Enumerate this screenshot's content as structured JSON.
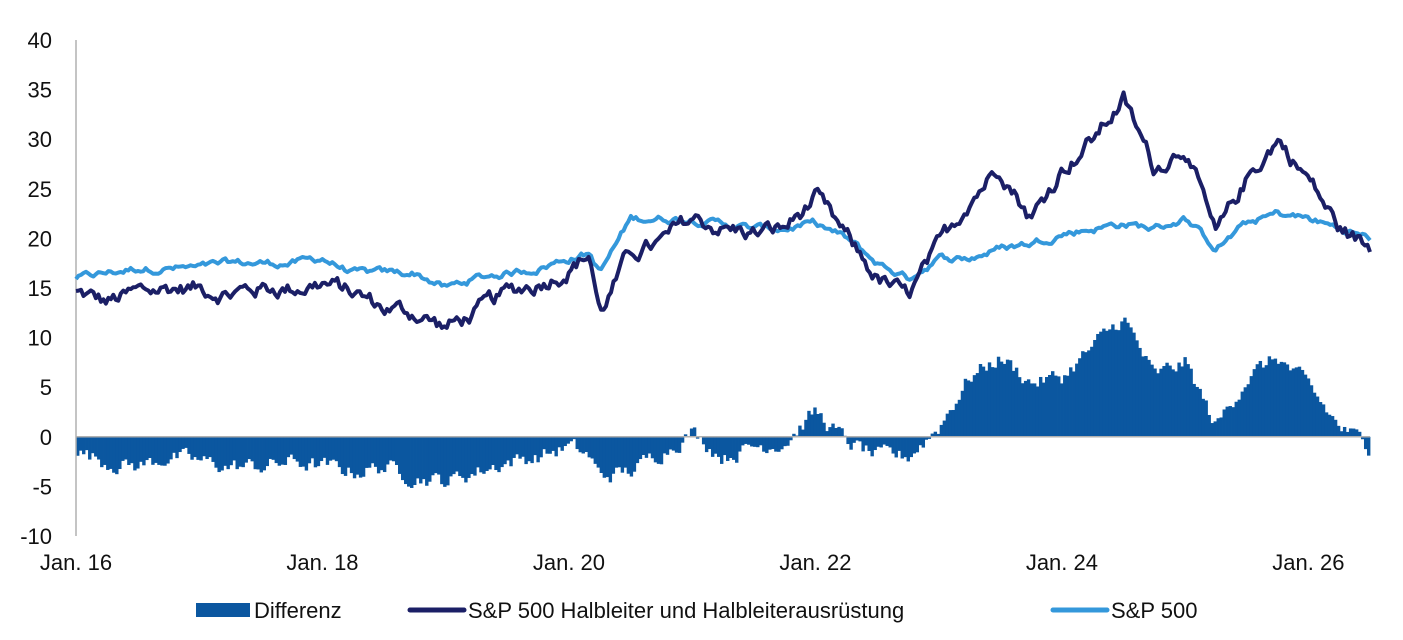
{
  "chart_data": {
    "type": "line",
    "title": "",
    "xlabel": "",
    "ylabel": "",
    "ylim": [
      -10,
      40
    ],
    "yticks": [
      -10,
      -5,
      0,
      5,
      10,
      15,
      20,
      25,
      30,
      35,
      40
    ],
    "xlim": [
      "2016-01",
      "2026-07"
    ],
    "xticks": [
      {
        "label": "Jan. 16",
        "date": "2016-01"
      },
      {
        "label": "Jan. 18",
        "date": "2018-01"
      },
      {
        "label": "Jan. 20",
        "date": "2020-01"
      },
      {
        "label": "Jan. 22",
        "date": "2022-01"
      },
      {
        "label": "Jan. 24",
        "date": "2024-01"
      },
      {
        "label": "Jan. 26",
        "date": "2026-01"
      }
    ],
    "grid": false,
    "legend": {
      "position": "bottom"
    },
    "colors": {
      "differenz": "#0b57a0",
      "semis": "#1b1f66",
      "sp500": "#3498db",
      "axis": "#b0b0b0",
      "text": "#111111"
    },
    "x": [
      "2016-01",
      "2016-04",
      "2016-07",
      "2016-10",
      "2017-01",
      "2017-04",
      "2017-07",
      "2017-10",
      "2018-01",
      "2018-04",
      "2018-07",
      "2018-10",
      "2019-01",
      "2019-04",
      "2019-07",
      "2019-10",
      "2020-01",
      "2020-03",
      "2020-04",
      "2020-07",
      "2020-10",
      "2021-01",
      "2021-04",
      "2021-07",
      "2021-10",
      "2022-01",
      "2022-04",
      "2022-07",
      "2022-10",
      "2023-01",
      "2023-04",
      "2023-07",
      "2023-10",
      "2024-01",
      "2024-04",
      "2024-07",
      "2024-10",
      "2025-01",
      "2025-04",
      "2025-07",
      "2025-10",
      "2026-01",
      "2026-04",
      "2026-07"
    ],
    "series": [
      {
        "name": "Differenz",
        "type": "bar",
        "values": [
          -1.5,
          -2.5,
          -3.0,
          -2.0,
          -2.5,
          -3.0,
          -3.0,
          -2.5,
          -3.0,
          -3.5,
          -3.0,
          -4.0,
          -4.5,
          -3.5,
          -2.5,
          -2.0,
          -1.0,
          -2.0,
          -4.0,
          -3.5,
          -1.5,
          0.5,
          -2.0,
          -1.0,
          -0.5,
          2.5,
          -0.5,
          -2.0,
          -2.0,
          1.0,
          6.0,
          8.0,
          5.5,
          6.0,
          9.0,
          12.0,
          6.0,
          7.5,
          1.0,
          6.0,
          8.0,
          5.0,
          1.0,
          -1.0
        ]
      },
      {
        "name": "S&P 500 Halbleiter und Halbleiterausrüstung",
        "type": "line",
        "values": [
          14.5,
          13.5,
          14.5,
          15.0,
          15.0,
          14.5,
          15.0,
          15.0,
          15.5,
          14.5,
          13.0,
          12.5,
          11.0,
          12.5,
          14.5,
          15.5,
          17.0,
          18.5,
          12.5,
          18.5,
          19.5,
          22.0,
          21.0,
          20.5,
          21.0,
          24.0,
          20.0,
          16.0,
          14.0,
          19.0,
          24.0,
          27.5,
          22.0,
          27.0,
          30.0,
          34.0,
          27.0,
          29.5,
          20.0,
          26.0,
          30.0,
          26.0,
          21.0,
          19.0
        ]
      },
      {
        "name": "S&P 500",
        "type": "line",
        "values": [
          16.0,
          16.5,
          17.0,
          17.0,
          17.0,
          17.5,
          17.5,
          17.5,
          18.0,
          16.5,
          16.5,
          16.5,
          15.0,
          16.0,
          16.5,
          17.0,
          18.0,
          18.5,
          16.5,
          22.0,
          22.0,
          22.0,
          21.5,
          21.0,
          21.0,
          21.5,
          20.0,
          17.5,
          16.0,
          18.0,
          18.0,
          19.0,
          19.5,
          20.5,
          21.0,
          21.5,
          21.0,
          22.0,
          19.0,
          21.5,
          22.5,
          22.0,
          21.0,
          20.0
        ]
      }
    ]
  }
}
